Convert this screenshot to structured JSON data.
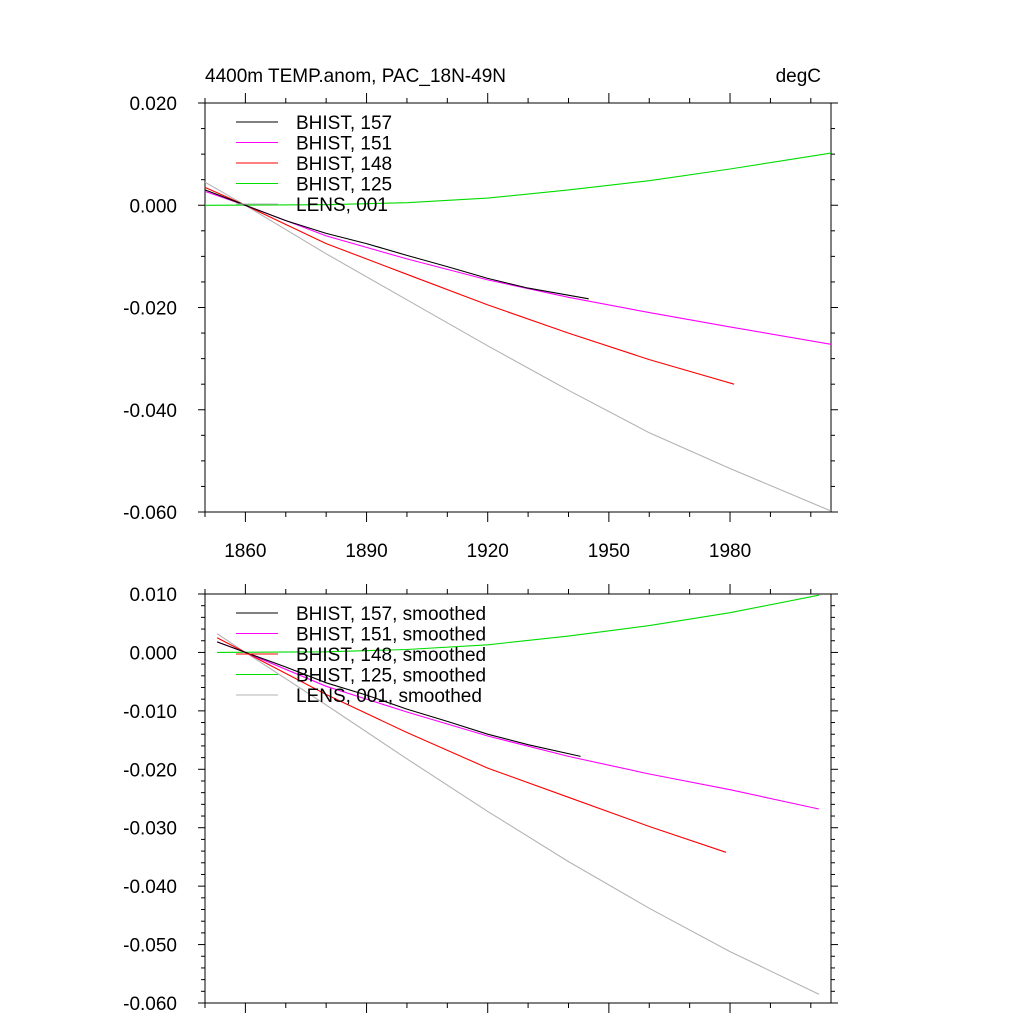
{
  "chart_data": [
    {
      "type": "line",
      "title": "4400m TEMP.anom, PAC_18N-49N",
      "units": "degC",
      "xlim": [
        1850,
        2005
      ],
      "ylim": [
        -0.06,
        0.02
      ],
      "xticks": [
        1860,
        1890,
        1920,
        1950,
        1980
      ],
      "yticks": [
        0.02,
        0.0,
        -0.02,
        -0.04,
        -0.06
      ],
      "ytick_labels": [
        "0.020",
        "0.000",
        "-0.020",
        "-0.040",
        "-0.060"
      ],
      "legend": "top-left",
      "series": [
        {
          "name": "BHIST, 157",
          "color": "#000000",
          "x": [
            1850,
            1860,
            1870,
            1880,
            1890,
            1900,
            1910,
            1920,
            1930,
            1945
          ],
          "y": [
            0.003,
            0.0,
            -0.003,
            -0.0055,
            -0.0075,
            -0.0098,
            -0.012,
            -0.0143,
            -0.0162,
            -0.0183
          ]
        },
        {
          "name": "BHIST, 151",
          "color": "#ff00ff",
          "x": [
            1850,
            1860,
            1880,
            1900,
            1920,
            1940,
            1960,
            1980,
            2005
          ],
          "y": [
            0.0027,
            0.0,
            -0.006,
            -0.0105,
            -0.0146,
            -0.018,
            -0.021,
            -0.0238,
            -0.0272
          ]
        },
        {
          "name": "BHIST, 148",
          "color": "#ff0000",
          "x": [
            1850,
            1860,
            1880,
            1900,
            1920,
            1940,
            1960,
            1981
          ],
          "y": [
            0.0035,
            0.0,
            -0.0075,
            -0.0135,
            -0.0195,
            -0.025,
            -0.0302,
            -0.035
          ]
        },
        {
          "name": "BHIST, 125",
          "color": "#00dd00",
          "x": [
            1850,
            1880,
            1900,
            1920,
            1940,
            1960,
            1980,
            2005
          ],
          "y": [
            0.0,
            0.0001,
            0.0005,
            0.0014,
            0.003,
            0.0048,
            0.0071,
            0.0102
          ]
        },
        {
          "name": "LENS, 001",
          "color": "#b3b3b3",
          "x": [
            1850,
            1860,
            1880,
            1900,
            1920,
            1940,
            1960,
            1980,
            2005
          ],
          "y": [
            0.0045,
            0.0,
            -0.0095,
            -0.0185,
            -0.0275,
            -0.0362,
            -0.0445,
            -0.0515,
            -0.0598
          ]
        }
      ]
    },
    {
      "type": "line",
      "title": "",
      "xlim": [
        1850,
        2005
      ],
      "ylim": [
        -0.06,
        0.01
      ],
      "xticks": [
        1860,
        1890,
        1920,
        1950,
        1980
      ],
      "xtick_labels_shown": false,
      "yticks": [
        0.01,
        0.0,
        -0.01,
        -0.02,
        -0.03,
        -0.04,
        -0.05,
        -0.06
      ],
      "ytick_labels": [
        "0.010",
        "0.000",
        "-0.010",
        "-0.020",
        "-0.030",
        "-0.040",
        "-0.050",
        "-0.060"
      ],
      "legend": "top-left",
      "series": [
        {
          "name": "BHIST, 157, smoothed",
          "color": "#000000",
          "x": [
            1853,
            1860,
            1870,
            1880,
            1890,
            1900,
            1910,
            1920,
            1930,
            1943
          ],
          "y": [
            0.0018,
            0.0,
            -0.0025,
            -0.0052,
            -0.0073,
            -0.0097,
            -0.0118,
            -0.014,
            -0.0158,
            -0.0178
          ]
        },
        {
          "name": "BHIST, 151, smoothed",
          "color": "#ff00ff",
          "x": [
            1853,
            1860,
            1880,
            1900,
            1920,
            1940,
            1960,
            1980,
            2002
          ],
          "y": [
            0.0018,
            0.0,
            -0.0058,
            -0.0102,
            -0.0143,
            -0.0178,
            -0.0208,
            -0.0235,
            -0.0268
          ]
        },
        {
          "name": "BHIST, 148, smoothed",
          "color": "#ff0000",
          "x": [
            1853,
            1860,
            1880,
            1900,
            1920,
            1940,
            1960,
            1979
          ],
          "y": [
            0.0025,
            0.0,
            -0.0072,
            -0.0137,
            -0.0198,
            -0.0248,
            -0.0298,
            -0.0342
          ]
        },
        {
          "name": "BHIST, 125, smoothed",
          "color": "#00dd00",
          "x": [
            1853,
            1880,
            1900,
            1920,
            1940,
            1960,
            1980,
            2002
          ],
          "y": [
            0.0,
            0.0001,
            0.0005,
            0.0013,
            0.0028,
            0.0046,
            0.0068,
            0.0098
          ]
        },
        {
          "name": "LENS, 001, smoothed",
          "color": "#b3b3b3",
          "x": [
            1853,
            1860,
            1880,
            1900,
            1920,
            1940,
            1960,
            1980,
            2002
          ],
          "y": [
            0.0032,
            0.0,
            -0.009,
            -0.0182,
            -0.0272,
            -0.0358,
            -0.0438,
            -0.0512,
            -0.0585
          ]
        }
      ]
    }
  ]
}
